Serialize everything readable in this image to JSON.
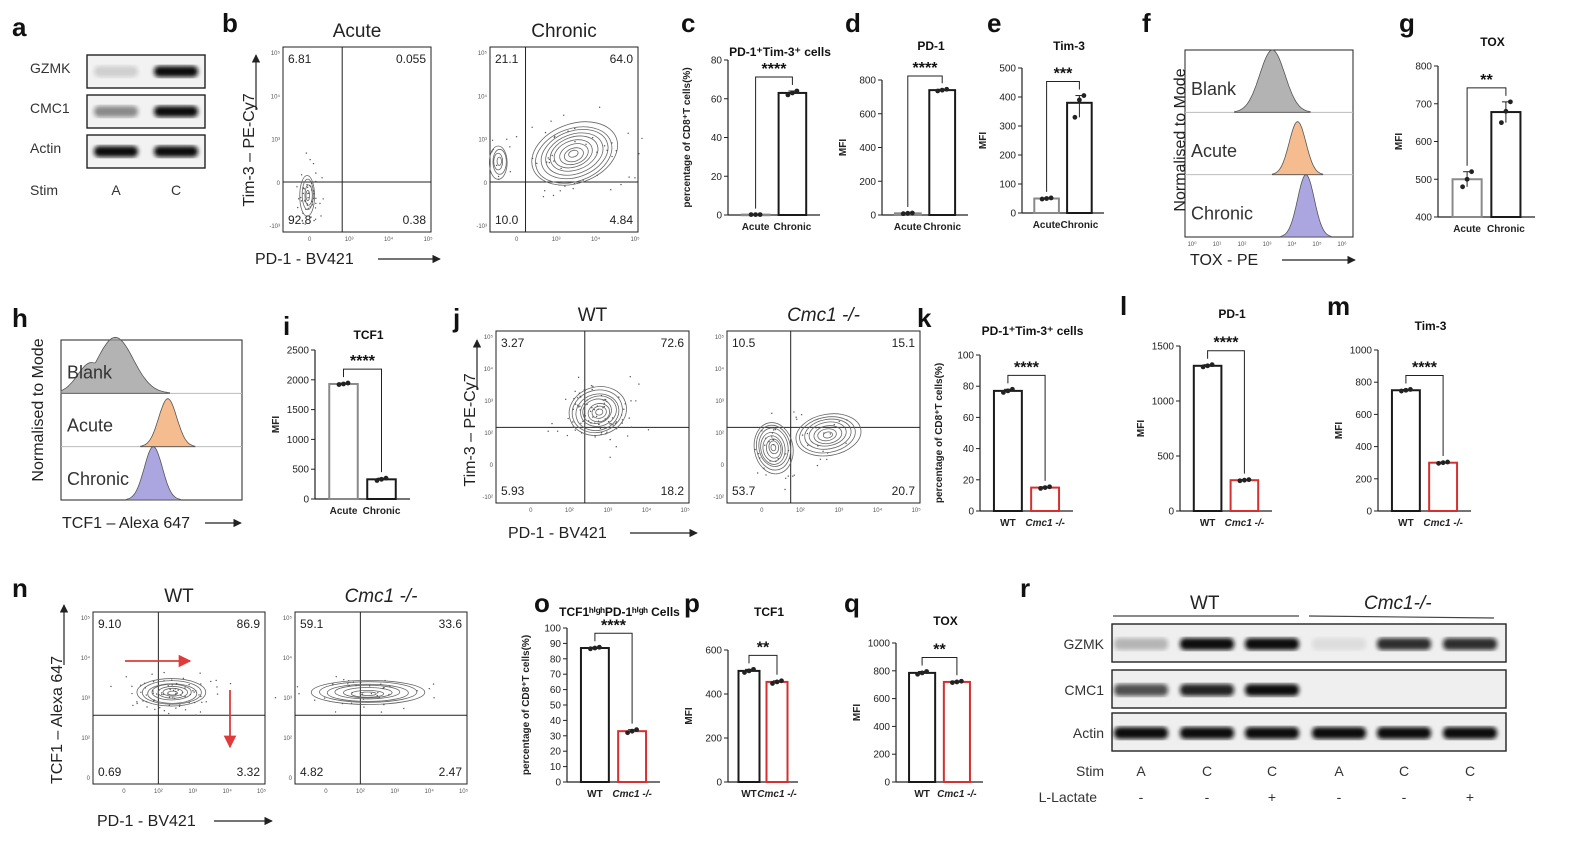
{
  "panel_labels": [
    "a",
    "b",
    "c",
    "d",
    "e",
    "f",
    "g",
    "h",
    "i",
    "j",
    "k",
    "l",
    "m",
    "n",
    "o",
    "p",
    "q",
    "r"
  ],
  "colors": {
    "black": "#1a1a1a",
    "grey": "#8a8a8a",
    "red": "#d62f2f",
    "orange": "#f0a56a",
    "purple": "#8f87d6",
    "blank": "#9a9a9a"
  },
  "blot_a": {
    "rows": [
      "GZMK",
      "CMC1",
      "Actin"
    ],
    "stim_label": "Stim",
    "lanes": [
      "A",
      "C"
    ]
  },
  "flow_b": {
    "xlabel": "PD-1 - BV421",
    "ylabel": "Tim-3 – PE-Cy7",
    "plots": [
      {
        "title": "Acute",
        "quadrants": {
          "tl": "6.81",
          "tr": "0.055",
          "bl": "92.8",
          "br": "0.38"
        }
      },
      {
        "title": "Chronic",
        "quadrants": {
          "tl": "21.1",
          "tr": "64.0",
          "bl": "10.0",
          "br": "4.84"
        }
      }
    ],
    "ticks_y": [
      "10⁵",
      "10⁴",
      "10³",
      "0",
      "-10³"
    ],
    "ticks_x": [
      "0",
      "10³",
      "10⁴",
      "10⁵"
    ]
  },
  "hist_f": {
    "ylabel": "Normalised to Mode",
    "xlabel": "TOX - PE",
    "labels": [
      "Blank",
      "Acute",
      "Chronic"
    ],
    "ticks": [
      "10⁰",
      "10¹",
      "10²",
      "10³",
      "10⁴",
      "10⁵",
      "10⁶"
    ]
  },
  "hist_h": {
    "ylabel": "Normalised to Mode",
    "xlabel": "TCF1 – Alexa 647",
    "labels": [
      "Blank",
      "Acute",
      "Chronic"
    ]
  },
  "flow_j": {
    "xlabel": "PD-1 - BV421",
    "ylabel": "Tim-3 – PE-Cy7",
    "plots": [
      {
        "title": "WT",
        "quadrants": {
          "tl": "3.27",
          "tr": "72.6",
          "bl": "5.93",
          "br": "18.2"
        }
      },
      {
        "title": "Cmc1 -/-",
        "quadrants": {
          "tl": "10.5",
          "tr": "15.1",
          "bl": "53.7",
          "br": "20.7"
        }
      }
    ],
    "ticks_y": [
      "10⁵",
      "10⁴",
      "10³",
      "10²",
      "0",
      "-10²"
    ],
    "ticks_x": [
      "0",
      "10²",
      "10³",
      "10⁴",
      "10⁵"
    ]
  },
  "flow_n": {
    "xlabel": "PD-1 - BV421",
    "ylabel": "TCF1 – Alexa 647",
    "plots": [
      {
        "title": "WT",
        "quadrants": {
          "tl": "9.10",
          "tr": "86.9",
          "bl": "0.69",
          "br": "3.32"
        }
      },
      {
        "title": "Cmc1 -/-",
        "quadrants": {
          "tl": "59.1",
          "tr": "33.6",
          "bl": "4.82",
          "br": "2.47"
        }
      }
    ],
    "ticks_y": [
      "10⁵",
      "10⁴",
      "10³",
      "10²",
      "0"
    ],
    "ticks_x": [
      "0",
      "10²",
      "10³",
      "10⁴",
      "10⁵"
    ]
  },
  "blot_r": {
    "groups": [
      "WT",
      "Cmc1-/-"
    ],
    "rows": [
      "GZMK",
      "CMC1",
      "Actin"
    ],
    "stim_label": "Stim",
    "lanes": [
      "A",
      "C",
      "C",
      "A",
      "C",
      "C"
    ],
    "lactate_label": "L-Lactate",
    "lactate": [
      "-",
      "-",
      "+",
      "-",
      "-",
      "+"
    ]
  },
  "chart_data": [
    {
      "panel": "c",
      "type": "bar",
      "title": "PD-1⁺Tim-3⁺ cells",
      "ylabel": "percentage of CD8⁺T cells(%)",
      "categories": [
        "Acute",
        "Chronic"
      ],
      "values": [
        0.2,
        63
      ],
      "points": [
        [
          0.2,
          0.2,
          0.2
        ],
        [
          62,
          63,
          64
        ]
      ],
      "ylim": [
        0,
        80
      ],
      "yticks": [
        0,
        20,
        40,
        60,
        80
      ],
      "significance": "****"
    },
    {
      "panel": "d",
      "type": "bar",
      "title": "PD-1",
      "ylabel": "MFI",
      "categories": [
        "Acute",
        "Chronic"
      ],
      "values": [
        10,
        740
      ],
      "points": [
        [
          8,
          10,
          12
        ],
        [
          735,
          740,
          745
        ]
      ],
      "ylim": [
        0,
        800
      ],
      "yticks": [
        0,
        200,
        400,
        600,
        800
      ],
      "significance": "****"
    },
    {
      "panel": "e",
      "type": "bar",
      "title": "Tim-3",
      "ylabel": "MFI",
      "categories": [
        "Acute",
        "Chronic"
      ],
      "values": [
        50,
        380
      ],
      "points": [
        [
          48,
          50,
          52
        ],
        [
          330,
          390,
          405
        ]
      ],
      "ylim": [
        0,
        500
      ],
      "yticks": [
        0,
        100,
        200,
        300,
        400,
        500
      ],
      "significance": "***"
    },
    {
      "panel": "g",
      "type": "bar",
      "title": "TOX",
      "ylabel": "MFI",
      "categories": [
        "Acute",
        "Chronic"
      ],
      "values": [
        500,
        678
      ],
      "points": [
        [
          480,
          500,
          520
        ],
        [
          650,
          680,
          705
        ]
      ],
      "ylim": [
        400,
        800
      ],
      "yticks": [
        400,
        500,
        600,
        700,
        800
      ],
      "significance": "**"
    },
    {
      "panel": "i",
      "type": "bar",
      "title": "TCF1",
      "ylabel": "MFI",
      "categories": [
        "Acute",
        "Chronic"
      ],
      "values": [
        1930,
        330
      ],
      "points": [
        [
          1920,
          1930,
          1945
        ],
        [
          310,
          330,
          350
        ]
      ],
      "ylim": [
        0,
        2500
      ],
      "yticks": [
        0,
        500,
        1000,
        1500,
        2000,
        2500
      ],
      "significance": "****"
    },
    {
      "panel": "k",
      "type": "bar",
      "title": "PD-1⁺Tim-3⁺ cells",
      "ylabel": "percentage of CD8⁺T cells(%)",
      "categories": [
        "WT",
        "Cmc1 -/-"
      ],
      "values": [
        77,
        15
      ],
      "points": [
        [
          76,
          77,
          78
        ],
        [
          14.5,
          15,
          15.5
        ]
      ],
      "ylim": [
        0,
        100
      ],
      "yticks": [
        0,
        20,
        40,
        60,
        80,
        100
      ],
      "significance": "****"
    },
    {
      "panel": "l",
      "type": "bar",
      "title": "PD-1",
      "ylabel": "MFI",
      "categories": [
        "WT",
        "Cmc1 -/-"
      ],
      "values": [
        1320,
        280
      ],
      "points": [
        [
          1310,
          1320,
          1330
        ],
        [
          275,
          280,
          285
        ]
      ],
      "ylim": [
        0,
        1500
      ],
      "yticks": [
        0,
        500,
        1000,
        1500
      ],
      "significance": "****"
    },
    {
      "panel": "m",
      "type": "bar",
      "title": "Tim-3",
      "ylabel": "MFI",
      "categories": [
        "WT",
        "Cmc1 -/-"
      ],
      "values": [
        750,
        300
      ],
      "points": [
        [
          745,
          750,
          755
        ],
        [
          296,
          300,
          304
        ]
      ],
      "ylim": [
        0,
        1000
      ],
      "yticks": [
        0,
        200,
        400,
        600,
        800,
        1000
      ],
      "significance": "****"
    },
    {
      "panel": "o",
      "type": "bar",
      "title": "TCF1ʰⁱᵍʰPD-1ʰⁱᵍʰ Cells",
      "ylabel": "percentage of CD8⁺T cells(%)",
      "categories": [
        "WT",
        "Cmc1 -/-"
      ],
      "values": [
        87,
        33
      ],
      "points": [
        [
          86.5,
          87,
          87.5
        ],
        [
          32,
          33,
          34
        ]
      ],
      "ylim": [
        0,
        100
      ],
      "yticks": [
        0,
        10,
        20,
        30,
        40,
        50,
        60,
        70,
        80,
        90,
        100
      ],
      "significance": "****"
    },
    {
      "panel": "p",
      "type": "bar",
      "title": "TCF1",
      "ylabel": "MFI",
      "categories": [
        "WT",
        "Cmc1 -/-"
      ],
      "values": [
        505,
        455
      ],
      "points": [
        [
          498,
          505,
          512
        ],
        [
          448,
          455,
          460
        ]
      ],
      "ylim": [
        0,
        600
      ],
      "yticks": [
        0,
        200,
        400,
        600
      ],
      "significance": "**"
    },
    {
      "panel": "q",
      "type": "bar",
      "title": "TOX",
      "ylabel": "MFI",
      "categories": [
        "WT",
        "Cmc1 -/-"
      ],
      "values": [
        785,
        720
      ],
      "points": [
        [
          775,
          785,
          795
        ],
        [
          715,
          720,
          725
        ]
      ],
      "ylim": [
        0,
        1000
      ],
      "yticks": [
        0,
        200,
        400,
        600,
        800,
        1000
      ],
      "significance": "**"
    }
  ]
}
